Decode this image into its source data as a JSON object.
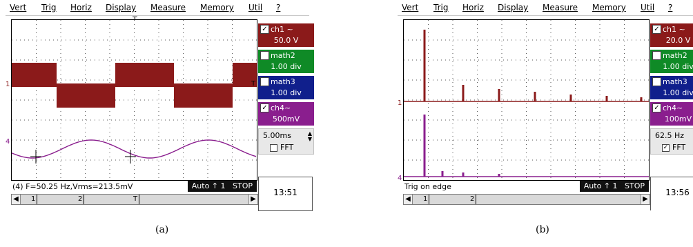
{
  "panels": [
    {
      "menu": [
        "Vert",
        "Trig",
        "Horiz",
        "Display",
        "Measure",
        "Memory",
        "Util",
        "?"
      ],
      "trigger_marker": "T",
      "marker_1": "1",
      "marker_4": "4",
      "marker_T_right": "T",
      "channels": [
        {
          "label": "ch1 ~",
          "value": "50.0 V",
          "checked": true,
          "color": "#8b1a1a"
        },
        {
          "label": "math2",
          "value": "1.00 div",
          "checked": false,
          "color": "#0f8a26"
        },
        {
          "label": "math3",
          "value": "1.00 div",
          "checked": false,
          "color": "#101f8c"
        },
        {
          "label": "ch4~",
          "value": "500mV",
          "checked": true,
          "color": "#8a1e8e"
        }
      ],
      "timebase": "5.00ms",
      "fft_label": "FFT",
      "fft_checked": false,
      "measure_text": "(4) F=50.25 Hz,Vrms=213.5mV",
      "run_text": "Auto ↑ 1   STOP",
      "clock": "13:51",
      "scroll_marks": [
        "1",
        "2",
        "T"
      ],
      "caption": "(a)",
      "signal": "time"
    },
    {
      "menu": [
        "Vert",
        "Trig",
        "Horiz",
        "Display",
        "Measure",
        "Memory",
        "Util",
        "?"
      ],
      "trigger_marker": "",
      "marker_1": "1",
      "marker_4": "4",
      "marker_T_right": "",
      "channels": [
        {
          "label": "ch1 ~",
          "value": "20.0 V",
          "checked": true,
          "color": "#8b1a1a"
        },
        {
          "label": "math2",
          "value": "1.00 div",
          "checked": false,
          "color": "#0f8a26"
        },
        {
          "label": "math3",
          "value": "1.00 div",
          "checked": false,
          "color": "#101f8c"
        },
        {
          "label": "ch4~",
          "value": "100mV",
          "checked": true,
          "color": "#8a1e8e"
        }
      ],
      "timebase": "62.5 Hz",
      "fft_label": "FFT",
      "fft_checked": true,
      "measure_text": "Trig on edge",
      "run_text": "Auto ↑ 1   STOP",
      "clock": "13:56",
      "scroll_marks": [
        "1",
        "2"
      ],
      "caption": "(b)",
      "signal": "fft"
    }
  ],
  "colors": {
    "ch1": "#8b1a1a",
    "ch4": "#8a1e8e",
    "grid": "#555555"
  }
}
